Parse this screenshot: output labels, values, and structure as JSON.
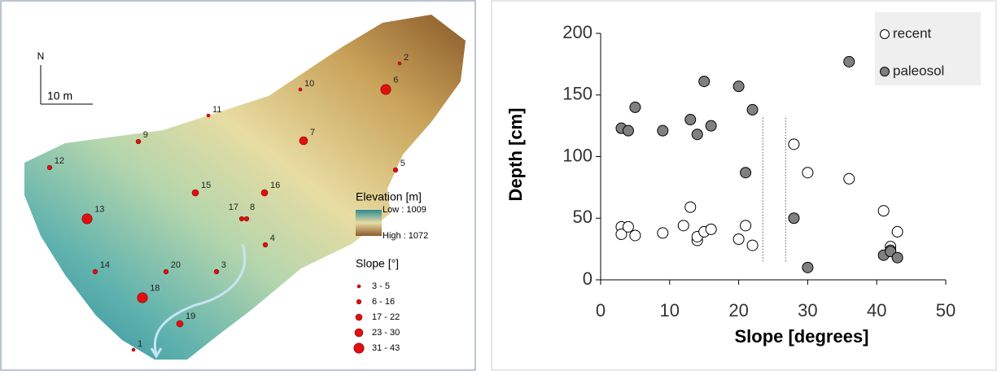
{
  "map": {
    "north": "N",
    "scale": "10 m",
    "sites": [
      {
        "label": "1",
        "class": 0
      },
      {
        "label": "2",
        "class": 0
      },
      {
        "label": "3",
        "class": 1
      },
      {
        "label": "4",
        "class": 1
      },
      {
        "label": "5",
        "class": 1
      },
      {
        "label": "6",
        "class": 4
      },
      {
        "label": "7",
        "class": 3
      },
      {
        "label": "8",
        "class": 1
      },
      {
        "label": "9",
        "class": 1
      },
      {
        "label": "10",
        "class": 0
      },
      {
        "label": "11",
        "class": 0
      },
      {
        "label": "12",
        "class": 1
      },
      {
        "label": "13",
        "class": 4
      },
      {
        "label": "14",
        "class": 1
      },
      {
        "label": "15",
        "class": 2
      },
      {
        "label": "16",
        "class": 2
      },
      {
        "label": "17",
        "class": 1
      },
      {
        "label": "18",
        "class": 4
      },
      {
        "label": "19",
        "class": 2
      },
      {
        "label": "20",
        "class": 1
      }
    ],
    "elevation_legend": {
      "title": "Elevation [m]",
      "low": "Low : 1009",
      "high": "High : 1072"
    },
    "slope_legend": {
      "title": "Slope [°]",
      "classes": [
        "3 - 5",
        "6 - 16",
        "17 - 22",
        "23 - 30",
        "31 - 43"
      ]
    }
  },
  "chart_data": {
    "type": "scatter",
    "x_label": "Slope [degrees]",
    "y_label": "Depth  [cm]",
    "xlim": [
      0,
      50
    ],
    "xticks": [
      0,
      10,
      20,
      30,
      40,
      50
    ],
    "ylim": [
      0,
      200
    ],
    "yticks": [
      0,
      50,
      100,
      150,
      200
    ],
    "legend": "top-right",
    "series": [
      {
        "name": "recent",
        "color": "#ffffff",
        "x": [
          3,
          3,
          4,
          5,
          9,
          12,
          13,
          14,
          14,
          15,
          16,
          20,
          21,
          22,
          28,
          30,
          36,
          41,
          42,
          42,
          43
        ],
        "values": [
          43,
          37,
          43,
          36,
          38,
          44,
          59,
          32,
          35,
          39,
          41,
          33,
          44,
          28,
          110,
          87,
          82,
          56,
          27,
          24,
          39
        ]
      },
      {
        "name": "paleosol",
        "color": "#808080",
        "x": [
          3,
          4,
          5,
          9,
          13,
          14,
          15,
          16,
          20,
          21,
          22,
          28,
          30,
          36,
          41,
          42,
          43
        ],
        "values": [
          123,
          121,
          140,
          121,
          130,
          118,
          161,
          125,
          157,
          87,
          138,
          50,
          10,
          177,
          20,
          23,
          18
        ]
      }
    ],
    "vlines": [
      {
        "x": 23.5,
        "y": [
          15,
          133
        ]
      },
      {
        "x": 26.8,
        "y": [
          15,
          133
        ]
      }
    ]
  }
}
